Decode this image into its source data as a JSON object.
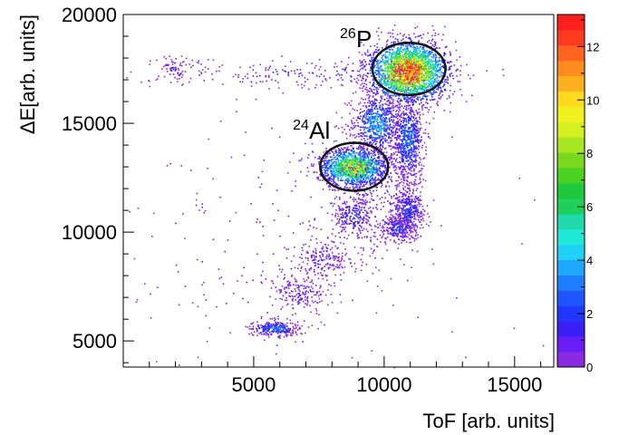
{
  "chart_data": {
    "type": "heatmap",
    "title": "",
    "xlabel": "ToF [arb. units]",
    "ylabel": "ΔE[arb. units]",
    "xlim": [
      0,
      16500
    ],
    "ylim": [
      3800,
      20000
    ],
    "xticks": [
      5000,
      10000,
      15000
    ],
    "yticks": [
      5000,
      10000,
      15000,
      20000
    ],
    "grid": false,
    "colorbar": {
      "range": [
        0,
        13.2
      ],
      "ticks": [
        0,
        2,
        4,
        6,
        8,
        10,
        12
      ],
      "colors": [
        "#8a2be2",
        "#6a1ef5",
        "#3b1ff7",
        "#1f37ff",
        "#1f55ff",
        "#1f80ff",
        "#1fa6ff",
        "#1fd1f5",
        "#1fe8d6",
        "#1fd9a8",
        "#1fcf5c",
        "#1fc73a",
        "#4bd11f",
        "#7ad91f",
        "#a8e61f",
        "#d4f01f",
        "#f0f01f",
        "#ffd91f",
        "#ffb01f",
        "#ff8c1f",
        "#ff631f",
        "#ff3a1f",
        "#ff1f1f"
      ]
    },
    "clusters": [
      {
        "cx": 10900,
        "cy": 17400,
        "sx": 750,
        "sy": 700,
        "peak": 13,
        "n": 2600
      },
      {
        "cx": 8800,
        "cy": 13000,
        "sx": 650,
        "sy": 450,
        "peak": 9,
        "n": 1500
      },
      {
        "cx": 9700,
        "cy": 15000,
        "sx": 450,
        "sy": 650,
        "peak": 4,
        "n": 650
      },
      {
        "cx": 10900,
        "cy": 14300,
        "sx": 300,
        "sy": 1000,
        "peak": 3,
        "n": 700
      },
      {
        "cx": 10900,
        "cy": 11000,
        "sx": 320,
        "sy": 600,
        "peak": 2,
        "n": 420
      },
      {
        "cx": 10500,
        "cy": 10200,
        "sx": 350,
        "sy": 300,
        "peak": 2,
        "n": 220
      },
      {
        "cx": 8800,
        "cy": 10800,
        "sx": 400,
        "sy": 450,
        "peak": 2,
        "n": 220
      },
      {
        "cx": 7600,
        "cy": 8800,
        "sx": 600,
        "sy": 500,
        "peak": 1,
        "n": 200
      },
      {
        "cx": 6800,
        "cy": 7200,
        "sx": 550,
        "sy": 400,
        "peak": 1,
        "n": 170
      },
      {
        "cx": 5800,
        "cy": 5600,
        "sx": 450,
        "sy": 180,
        "peak": 3,
        "n": 260
      },
      {
        "cx": 9500,
        "cy": 12000,
        "sx": 900,
        "sy": 1800,
        "peak": 1,
        "n": 380
      },
      {
        "cx": 6500,
        "cy": 17300,
        "sx": 3000,
        "sy": 350,
        "peak": 1,
        "n": 200
      },
      {
        "cx": 1900,
        "cy": 17500,
        "sx": 400,
        "sy": 300,
        "peak": 1,
        "n": 70
      },
      {
        "cx": 6000,
        "cy": 9000,
        "sx": 3500,
        "sy": 3500,
        "peak": 1,
        "n": 250
      }
    ],
    "annotations": [
      {
        "label": "P",
        "mass": "26",
        "cx": 10950,
        "cy": 17500,
        "rx": 1400,
        "ry": 1200,
        "label_x": 8300,
        "label_y": 18500
      },
      {
        "label": "Al",
        "mass": "24",
        "cx": 8850,
        "cy": 13000,
        "rx": 1300,
        "ry": 1100,
        "label_x": 6500,
        "label_y": 14300
      }
    ]
  }
}
